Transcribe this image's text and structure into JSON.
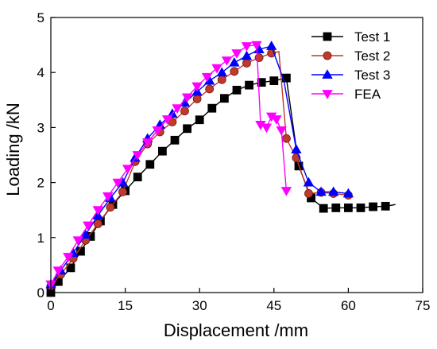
{
  "chart_data": {
    "type": "line",
    "title": "",
    "xlabel": "Displacement /mm",
    "ylabel": "Loading /kN",
    "xlim": [
      0,
      75
    ],
    "ylim": [
      0,
      5
    ],
    "xticks": [
      0,
      15,
      30,
      45,
      60,
      75
    ],
    "yticks": [
      0,
      1,
      2,
      3,
      4,
      5
    ],
    "grid": false,
    "legend_position": "top-right",
    "series": [
      {
        "name": "Test 1",
        "color": "#000000",
        "marker": "square",
        "x": [
          0,
          1.5,
          4,
          6,
          8,
          10,
          12.5,
          15,
          17.5,
          20,
          22.5,
          25,
          27.5,
          30,
          32.5,
          35,
          37.5,
          40,
          42.5,
          45,
          47.5,
          50,
          52.5,
          55,
          57.5,
          60,
          62.5,
          65,
          67.5,
          69.5
        ],
        "y": [
          0,
          0.2,
          0.45,
          0.75,
          1.02,
          1.3,
          1.6,
          1.85,
          2.1,
          2.33,
          2.57,
          2.77,
          2.98,
          3.14,
          3.35,
          3.53,
          3.68,
          3.77,
          3.82,
          3.85,
          3.9,
          2.3,
          1.72,
          1.53,
          1.54,
          1.54,
          1.54,
          1.56,
          1.57,
          1.6
        ],
        "marker_x": [
          0,
          1.5,
          4,
          6,
          8,
          10,
          12.5,
          15,
          17.5,
          20,
          22.5,
          25,
          27.5,
          30,
          32.5,
          35,
          37.5,
          40,
          42.5,
          45,
          47.5,
          50,
          52.5,
          55,
          57.5,
          60,
          62.5,
          65,
          67.5
        ],
        "marker_y": [
          0,
          0.2,
          0.45,
          0.75,
          1.02,
          1.3,
          1.6,
          1.85,
          2.1,
          2.33,
          2.57,
          2.77,
          2.98,
          3.14,
          3.35,
          3.53,
          3.68,
          3.77,
          3.82,
          3.85,
          3.9,
          2.3,
          1.72,
          1.53,
          1.54,
          1.54,
          1.54,
          1.56,
          1.57
        ]
      },
      {
        "name": "Test 2",
        "color": "#c0392b",
        "marker": "circle",
        "x": [
          0,
          2,
          4.5,
          7,
          9.5,
          12,
          14.5,
          17,
          19.5,
          22,
          24.5,
          27,
          29.5,
          32,
          34.5,
          37,
          39.5,
          42,
          44.5,
          46,
          47.5,
          49.5,
          52,
          54.5,
          57,
          60
        ],
        "y": [
          0.12,
          0.33,
          0.62,
          0.95,
          1.25,
          1.55,
          1.83,
          2.38,
          2.7,
          2.92,
          3.1,
          3.3,
          3.52,
          3.7,
          3.87,
          4.02,
          4.17,
          4.27,
          4.35,
          4.38,
          2.8,
          2.45,
          1.8,
          1.82,
          1.8,
          1.77
        ],
        "marker_x": [
          0,
          2,
          4.5,
          7,
          9.5,
          12,
          14.5,
          17,
          19.5,
          22,
          24.5,
          27,
          29.5,
          32,
          34.5,
          37,
          39.5,
          42,
          44.5,
          47.5,
          49.5,
          52,
          54.5,
          57,
          60
        ],
        "marker_y": [
          0.12,
          0.33,
          0.62,
          0.95,
          1.25,
          1.55,
          1.83,
          2.38,
          2.7,
          2.92,
          3.1,
          3.3,
          3.52,
          3.7,
          3.87,
          4.02,
          4.17,
          4.27,
          4.35,
          2.8,
          2.45,
          1.8,
          1.82,
          1.8,
          1.77
        ]
      },
      {
        "name": "Test 3",
        "color": "#0000ff",
        "marker": "triangle",
        "x": [
          0,
          2,
          4.5,
          7,
          9.5,
          12,
          14.5,
          17,
          19.5,
          22,
          24.5,
          27,
          29.5,
          32,
          34.5,
          37,
          39.5,
          42,
          44.5,
          47,
          49.5,
          52,
          54.5,
          57,
          60
        ],
        "y": [
          0.15,
          0.4,
          0.72,
          1.05,
          1.4,
          1.72,
          2.0,
          2.45,
          2.8,
          3.05,
          3.25,
          3.45,
          3.65,
          3.85,
          4.0,
          4.18,
          4.3,
          4.42,
          4.48,
          3.85,
          2.6,
          2.0,
          1.83,
          1.83,
          1.8
        ],
        "marker_x": [
          0,
          2,
          4.5,
          7,
          9.5,
          12,
          14.5,
          17,
          19.5,
          22,
          24.5,
          27,
          29.5,
          32,
          34.5,
          37,
          39.5,
          42,
          44.5,
          49.5,
          52,
          54.5,
          57,
          60
        ],
        "marker_y": [
          0.15,
          0.4,
          0.72,
          1.05,
          1.4,
          1.72,
          2.0,
          2.45,
          2.8,
          3.05,
          3.25,
          3.45,
          3.65,
          3.85,
          4.0,
          4.18,
          4.3,
          4.42,
          4.48,
          2.6,
          2.0,
          1.83,
          1.83,
          1.8
        ]
      },
      {
        "name": "FEA",
        "color": "#ff00ff",
        "marker": "triangle-down",
        "x": [
          0,
          1.5,
          3.5,
          5.5,
          7.5,
          9.5,
          11.5,
          13.5,
          15.5,
          17.5,
          19.5,
          21.5,
          23.5,
          25.5,
          27.5,
          29.5,
          31.5,
          33.5,
          35.5,
          37.5,
          39.5,
          41.5,
          42.3,
          43.5,
          44.5,
          45.5,
          46.5,
          47.5
        ],
        "y": [
          0.15,
          0.4,
          0.65,
          0.95,
          1.22,
          1.5,
          1.75,
          2.0,
          2.25,
          2.5,
          2.73,
          2.95,
          3.15,
          3.35,
          3.55,
          3.75,
          3.92,
          4.08,
          4.22,
          4.35,
          4.48,
          4.5,
          3.05,
          3.0,
          3.2,
          3.15,
          2.95,
          1.85
        ],
        "marker_x": [
          0,
          1.5,
          3.5,
          5.5,
          7.5,
          9.5,
          11.5,
          13.5,
          15.5,
          17.5,
          19.5,
          21.5,
          23.5,
          25.5,
          27.5,
          29.5,
          31.5,
          33.5,
          35.5,
          37.5,
          39.5,
          41.5,
          42.3,
          43.5,
          44.5,
          45.5,
          46.5,
          47.5
        ],
        "marker_y": [
          0.15,
          0.4,
          0.65,
          0.95,
          1.22,
          1.5,
          1.75,
          2.0,
          2.25,
          2.5,
          2.73,
          2.95,
          3.15,
          3.35,
          3.55,
          3.75,
          3.92,
          4.08,
          4.22,
          4.35,
          4.48,
          4.5,
          3.05,
          3.0,
          3.2,
          3.15,
          2.95,
          1.85
        ]
      }
    ]
  }
}
